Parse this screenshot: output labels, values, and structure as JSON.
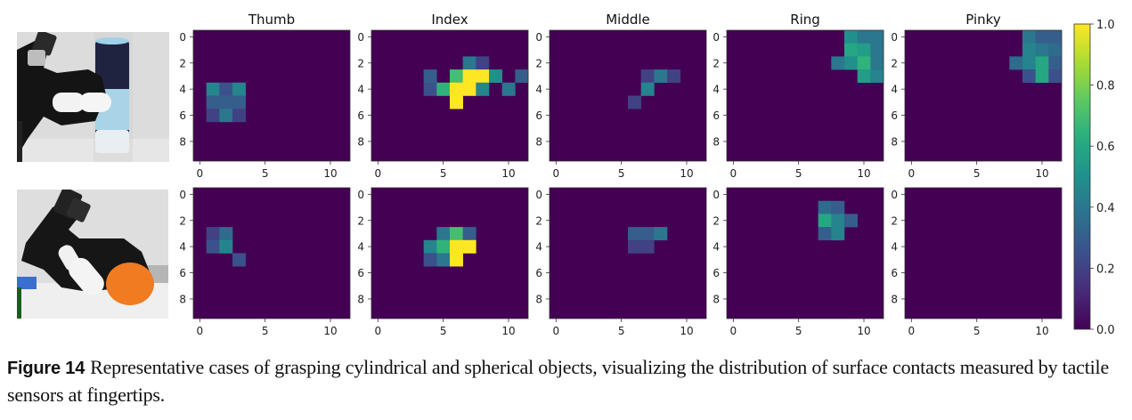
{
  "chart_data": {
    "type": "heatmap",
    "colormap": "viridis",
    "grid_rows": 10,
    "grid_cols": 12,
    "x_ticks": [
      "0",
      "5",
      "10"
    ],
    "y_ticks": [
      "0",
      "2",
      "4",
      "6",
      "8"
    ],
    "colorbar": {
      "range": [
        0.0,
        1.0
      ],
      "ticks": [
        "0.0",
        "0.2",
        "0.4",
        "0.6",
        "0.8",
        "1.0"
      ]
    },
    "column_titles": [
      "Thumb",
      "Index",
      "Middle",
      "Ring",
      "Pinky"
    ],
    "rows": [
      {
        "object": "cylindrical",
        "panels": [
          {
            "finger": "Thumb",
            "cells": [
              [
                4,
                1,
                0.45
              ],
              [
                4,
                2,
                0.25
              ],
              [
                4,
                3,
                0.45
              ],
              [
                5,
                1,
                0.3
              ],
              [
                5,
                2,
                0.3
              ],
              [
                5,
                3,
                0.3
              ],
              [
                6,
                1,
                0.2
              ],
              [
                6,
                2,
                0.4
              ],
              [
                6,
                3,
                0.2
              ]
            ]
          },
          {
            "finger": "Index",
            "cells": [
              [
                2,
                7,
                0.4
              ],
              [
                2,
                8,
                0.2
              ],
              [
                3,
                4,
                0.3
              ],
              [
                3,
                6,
                0.7
              ],
              [
                3,
                7,
                1.0
              ],
              [
                3,
                8,
                1.0
              ],
              [
                3,
                9,
                0.5
              ],
              [
                3,
                11,
                0.3
              ],
              [
                4,
                4,
                0.25
              ],
              [
                4,
                5,
                0.65
              ],
              [
                4,
                6,
                1.0
              ],
              [
                4,
                7,
                1.0
              ],
              [
                4,
                8,
                0.45
              ],
              [
                4,
                10,
                0.4
              ],
              [
                5,
                6,
                1.0
              ]
            ]
          },
          {
            "finger": "Middle",
            "cells": [
              [
                3,
                7,
                0.2
              ],
              [
                3,
                8,
                0.4
              ],
              [
                3,
                9,
                0.2
              ],
              [
                4,
                7,
                0.45
              ],
              [
                5,
                6,
                0.2
              ]
            ]
          },
          {
            "finger": "Ring",
            "cells": [
              [
                0,
                9,
                0.5
              ],
              [
                0,
                10,
                0.4
              ],
              [
                0,
                11,
                0.4
              ],
              [
                1,
                9,
                0.6
              ],
              [
                1,
                10,
                0.55
              ],
              [
                1,
                11,
                0.4
              ],
              [
                2,
                8,
                0.4
              ],
              [
                2,
                9,
                0.5
              ],
              [
                2,
                10,
                0.65
              ],
              [
                2,
                11,
                0.4
              ],
              [
                3,
                10,
                0.55
              ],
              [
                3,
                11,
                0.45
              ]
            ]
          },
          {
            "finger": "Pinky",
            "cells": [
              [
                0,
                9,
                0.4
              ],
              [
                0,
                10,
                0.3
              ],
              [
                0,
                11,
                0.3
              ],
              [
                1,
                9,
                0.45
              ],
              [
                1,
                10,
                0.4
              ],
              [
                1,
                11,
                0.35
              ],
              [
                2,
                8,
                0.35
              ],
              [
                2,
                9,
                0.45
              ],
              [
                2,
                10,
                0.6
              ],
              [
                2,
                11,
                0.3
              ],
              [
                3,
                9,
                0.25
              ],
              [
                3,
                10,
                0.6
              ],
              [
                3,
                11,
                0.25
              ]
            ]
          }
        ]
      },
      {
        "object": "spherical",
        "panels": [
          {
            "finger": "Thumb",
            "cells": [
              [
                3,
                1,
                0.2
              ],
              [
                3,
                2,
                0.35
              ],
              [
                4,
                1,
                0.25
              ],
              [
                4,
                2,
                0.45
              ],
              [
                5,
                3,
                0.25
              ]
            ]
          },
          {
            "finger": "Index",
            "cells": [
              [
                3,
                5,
                0.4
              ],
              [
                3,
                6,
                0.7
              ],
              [
                3,
                7,
                0.3
              ],
              [
                4,
                4,
                0.45
              ],
              [
                4,
                5,
                0.65
              ],
              [
                4,
                6,
                1.0
              ],
              [
                4,
                7,
                1.0
              ],
              [
                5,
                4,
                0.25
              ],
              [
                5,
                5,
                0.4
              ],
              [
                5,
                6,
                1.0
              ]
            ]
          },
          {
            "finger": "Middle",
            "cells": [
              [
                3,
                6,
                0.3
              ],
              [
                3,
                7,
                0.3
              ],
              [
                3,
                8,
                0.4
              ],
              [
                4,
                6,
                0.2
              ],
              [
                4,
                7,
                0.2
              ]
            ]
          },
          {
            "finger": "Ring",
            "cells": [
              [
                1,
                7,
                0.35
              ],
              [
                1,
                8,
                0.3
              ],
              [
                2,
                7,
                0.6
              ],
              [
                2,
                8,
                0.45
              ],
              [
                2,
                9,
                0.3
              ],
              [
                3,
                7,
                0.3
              ],
              [
                3,
                8,
                0.45
              ]
            ]
          },
          {
            "finger": "Pinky",
            "cells": []
          }
        ]
      }
    ]
  },
  "caption": {
    "label": "Figure 14",
    "text": "Representative cases of grasping cylindrical and spherical objects, visualizing the distribution of surface contacts measured by tactile sensors at fingertips."
  }
}
